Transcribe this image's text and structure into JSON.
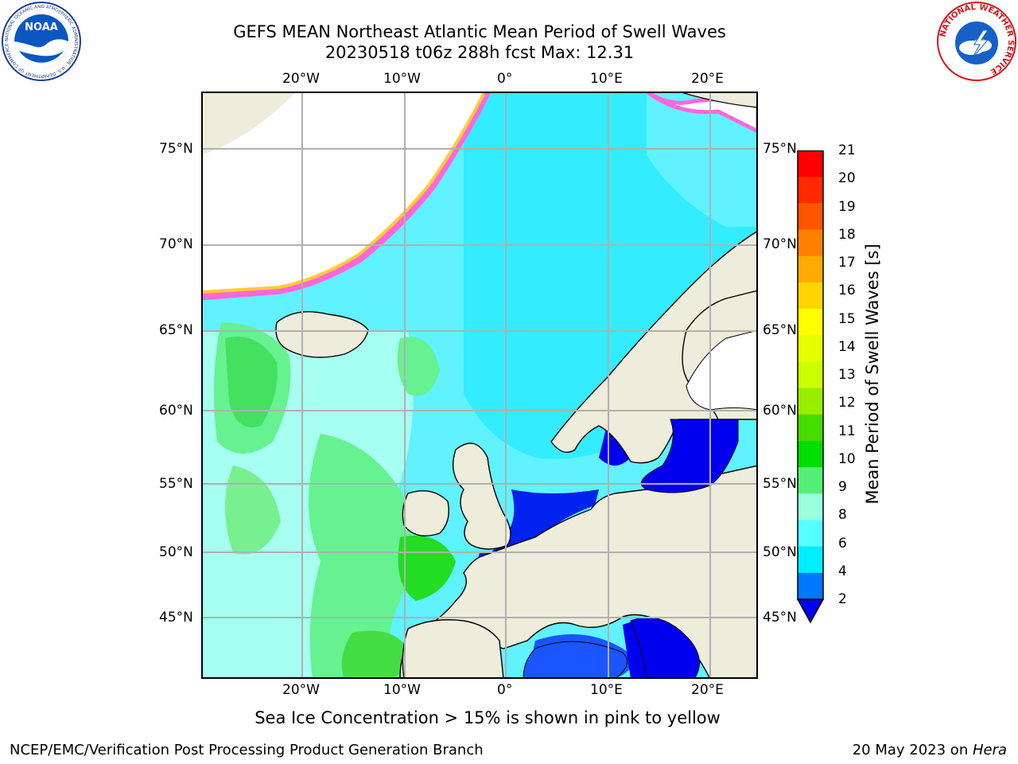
{
  "title": {
    "line1": "GEFS MEAN Northeast Atlantic Mean Period of Swell Waves",
    "line2": "20230518 t06z 288h fcst   Max: 12.31"
  },
  "map_labels": {
    "lon_top": [
      "20°W",
      "10°W",
      "0°",
      "10°E",
      "20°E"
    ],
    "lon_bottom": [
      "20°W",
      "10°W",
      "0°",
      "10°E",
      "20°E"
    ],
    "lat_left": [
      "75°N",
      "70°N",
      "65°N",
      "60°N",
      "55°N",
      "50°N",
      "45°N"
    ],
    "lat_right": [
      "75°N",
      "70°N",
      "65°N",
      "60°N",
      "55°N",
      "50°N",
      "45°N"
    ]
  },
  "colorbar": {
    "label": "Mean Period of Swell Waves [s]",
    "ticks": [
      "21",
      "20",
      "19",
      "18",
      "17",
      "16",
      "15",
      "14",
      "13",
      "12",
      "11",
      "10",
      "9",
      "8",
      "6",
      "4",
      "2"
    ],
    "colors": [
      "#ff0000",
      "#ff2a00",
      "#ff5500",
      "#ff8000",
      "#ffaa00",
      "#ffd500",
      "#ffff00",
      "#e6ff00",
      "#ccff00",
      "#99ee00",
      "#44dd00",
      "#00dd00",
      "#55ee77",
      "#99ffdd",
      "#55ffff",
      "#00eeff",
      "#0077ff",
      "#0000ee"
    ]
  },
  "caption": "Sea Ice Concentration > 15% is shown in pink to yellow",
  "footer": {
    "left": "NCEP/EMC/Verification Post Processing Product Generation Branch",
    "date": "20 May 2023 on ",
    "machine": "Hera"
  },
  "logos": {
    "noaa_text": "NOAA",
    "noaa_ring": "NATIONAL OCEANIC AND ATMOSPHERIC ADMINISTRATION · U.S. DEPARTMENT OF COMMERCE ·",
    "nws_ring": "NATIONAL WEATHER SERVICE"
  }
}
